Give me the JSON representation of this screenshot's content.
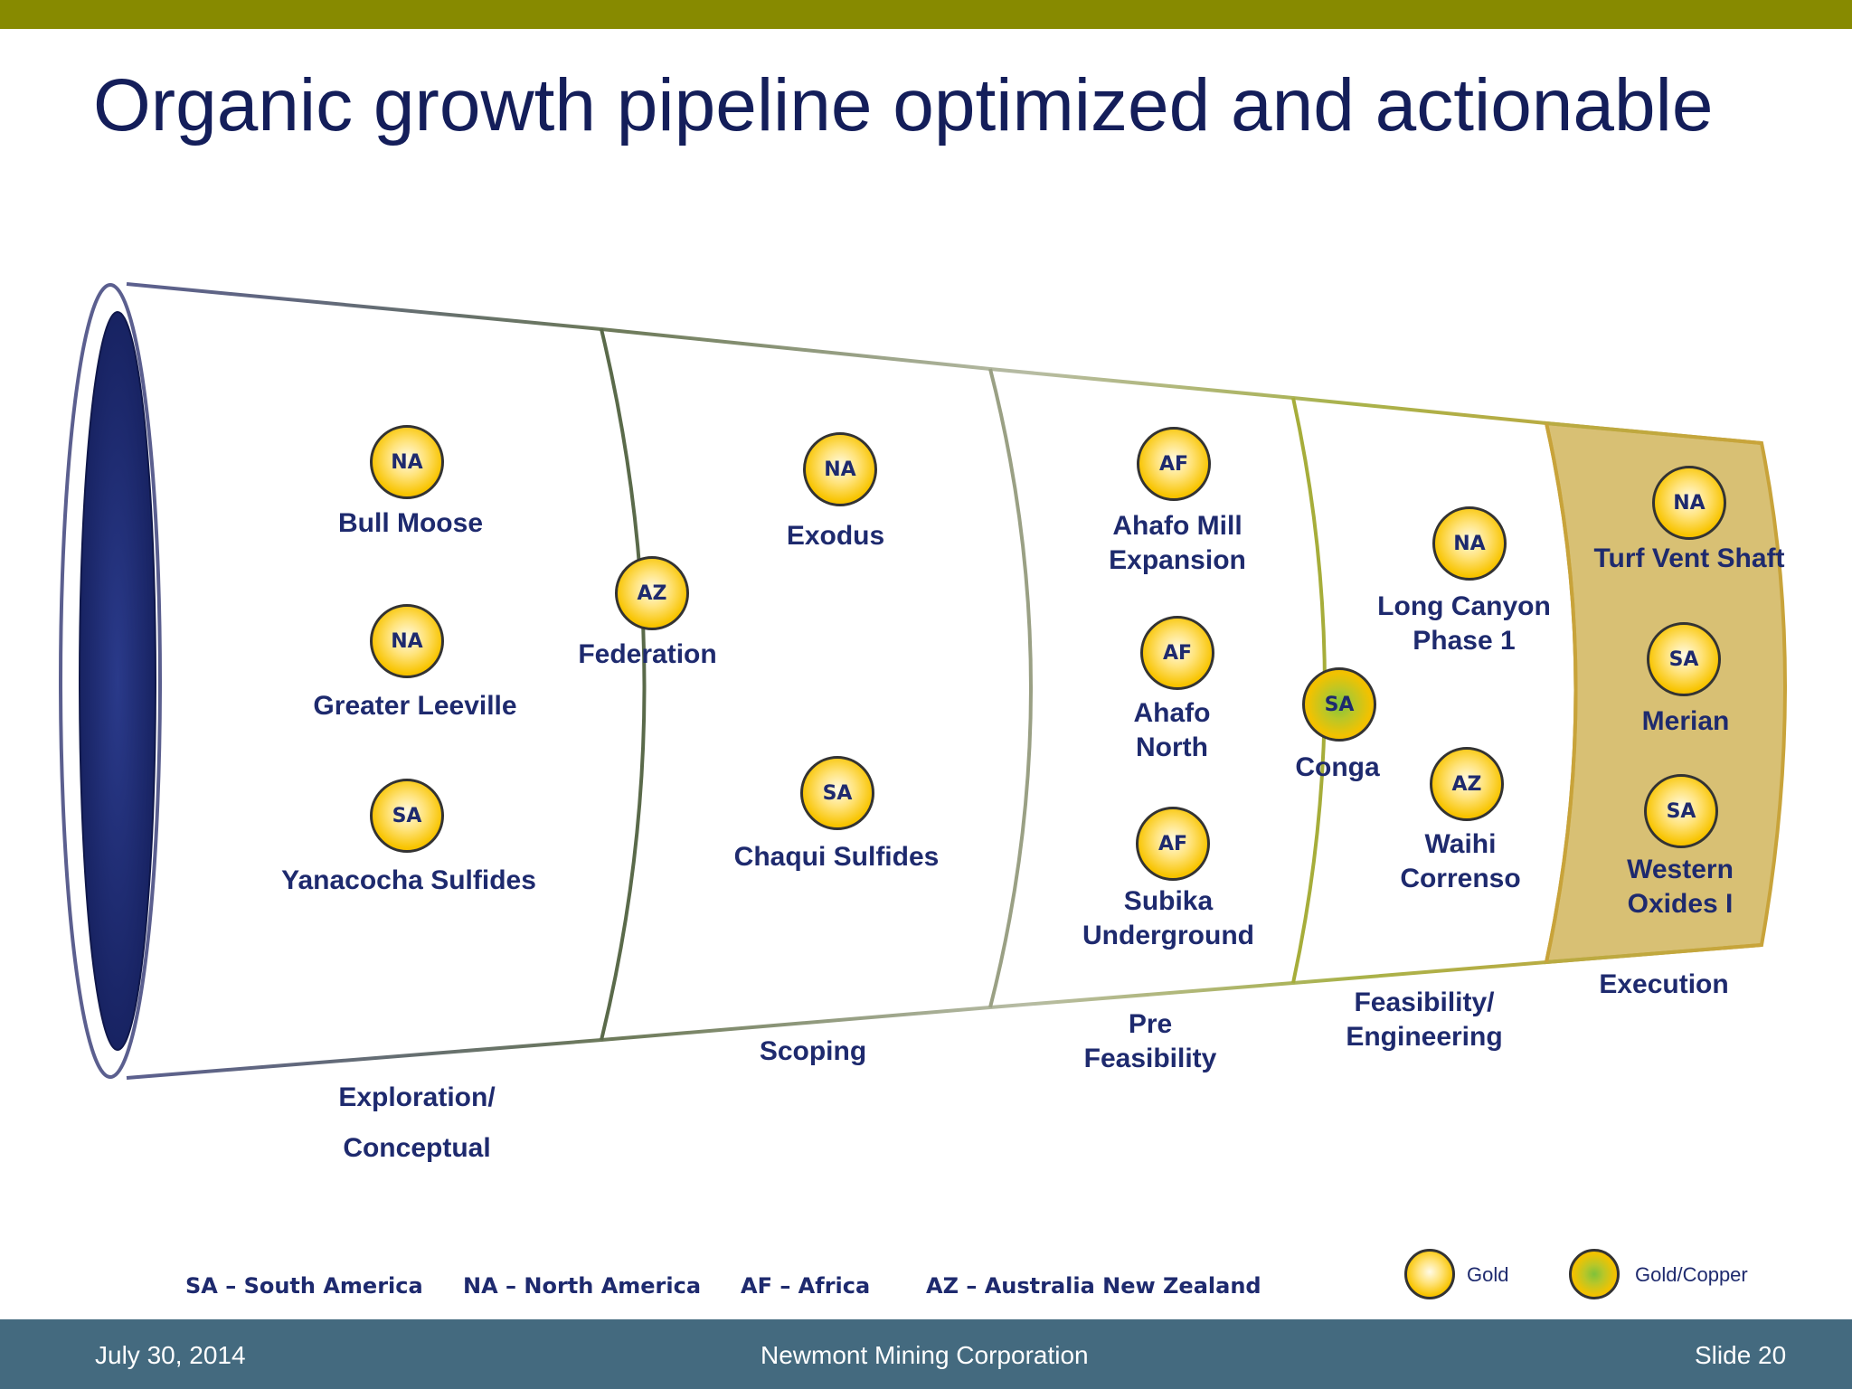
{
  "title": "Organic growth pipeline optimized and actionable",
  "colors": {
    "accent_bar": "#878a00",
    "title": "#141e5a",
    "label": "#1e2a6e",
    "footer": "#446a7f",
    "execution_fill": "#d8c074"
  },
  "projects": [
    {
      "region": "NA",
      "name": "Bull Moose",
      "type": "gold"
    },
    {
      "region": "NA",
      "name": "Greater Leeville",
      "type": "gold"
    },
    {
      "region": "SA",
      "name": "Yanacocha Sulfides",
      "type": "gold"
    },
    {
      "region": "AZ",
      "name": "Federation",
      "type": "gold"
    },
    {
      "region": "NA",
      "name": "Exodus",
      "type": "gold"
    },
    {
      "region": "SA",
      "name": "Chaqui Sulfides",
      "type": "gold"
    },
    {
      "region": "AF",
      "name": "Ahafo Mill Expansion",
      "line1": "Ahafo Mill",
      "line2": "Expansion",
      "type": "gold"
    },
    {
      "region": "AF",
      "name": "Ahafo North",
      "line1": "Ahafo",
      "line2": "North",
      "type": "gold"
    },
    {
      "region": "AF",
      "name": "Subika Underground",
      "line1": "Subika",
      "line2": "Underground",
      "type": "gold"
    },
    {
      "region": "SA",
      "name": "Conga",
      "type": "gold/copper"
    },
    {
      "region": "NA",
      "name": "Long Canyon Phase 1",
      "line1": "Long Canyon",
      "line2": "Phase 1",
      "type": "gold"
    },
    {
      "region": "AZ",
      "name": "Waihi Correnso",
      "line1": "Waihi",
      "line2": "Correnso",
      "type": "gold"
    },
    {
      "region": "NA",
      "name": "Turf Vent Shaft",
      "type": "gold"
    },
    {
      "region": "SA",
      "name": "Merian",
      "type": "gold"
    },
    {
      "region": "SA",
      "name": "Western Oxides I",
      "line1": "Western",
      "line2": "Oxides I",
      "type": "gold"
    }
  ],
  "stages": [
    {
      "line1": "Exploration/",
      "line2": "Conceptual"
    },
    {
      "line1": "Scoping"
    },
    {
      "line1": "Pre",
      "line2": "Feasibility"
    },
    {
      "line1": "Feasibility/",
      "line2": "Engineering"
    },
    {
      "line1": "Execution"
    }
  ],
  "legend": {
    "regions": [
      "SA – South America",
      "NA – North America",
      "AF – Africa",
      "AZ – Australia New Zealand"
    ],
    "gold": "Gold",
    "gold_copper": "Gold/Copper"
  },
  "footer": {
    "date": "July 30, 2014",
    "company": "Newmont Mining Corporation",
    "slide": "Slide 20"
  }
}
